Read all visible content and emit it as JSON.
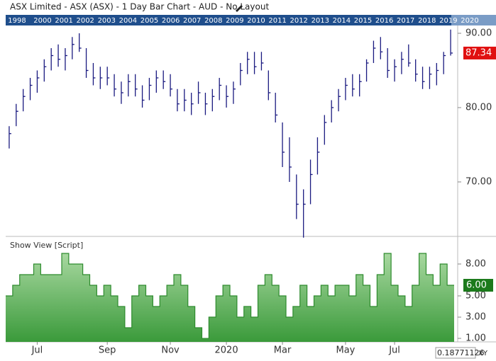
{
  "window": {
    "title": "ASX Limited - ASX (ASX) - 1 Day Bar Chart - AUD - No Layout",
    "years": [
      "1998",
      "2000",
      "2001",
      "2002",
      "2003",
      "2004",
      "2005",
      "2006",
      "2007",
      "2008",
      "2009",
      "2010",
      "2011",
      "2012",
      "2013",
      "2014",
      "2015",
      "2016",
      "2017",
      "2018",
      "2019",
      "2020"
    ],
    "cursor_value": "0.18771126",
    "xy_button": "XY"
  },
  "chart_data": [
    {
      "type": "ohlc",
      "color": "#1a1a80",
      "high": [
        77.5,
        80.5,
        82.5,
        84,
        85,
        86.5,
        88,
        88.5,
        88,
        89.5,
        90,
        88,
        86,
        85.5,
        85.5,
        84.5,
        83.5,
        84.5,
        84.5,
        83,
        84,
        85,
        85,
        84.5,
        82.5,
        82.5,
        82,
        83.5,
        82,
        82.5,
        84,
        83,
        83.5,
        86,
        87.5,
        87.5,
        87.5,
        85,
        82,
        78,
        76,
        71,
        69,
        73,
        76,
        79,
        81,
        82.5,
        84,
        84.5,
        84.5,
        86.5,
        89,
        89.5,
        88,
        86.5,
        87.5,
        88.5,
        86.5,
        85.5,
        85.5,
        86,
        87.5,
        90.5
      ],
      "low": [
        74.5,
        77.5,
        79.5,
        81,
        82,
        83.5,
        85,
        85.5,
        85,
        86.5,
        87.5,
        84,
        83,
        82.5,
        83,
        81.5,
        80.5,
        81.5,
        81.5,
        80,
        81,
        82,
        82.5,
        81.5,
        79.5,
        79.5,
        79,
        80.5,
        79,
        79.5,
        81,
        80,
        80.5,
        83,
        84.5,
        84.5,
        85,
        81,
        78,
        72,
        70,
        65,
        62.5,
        67,
        71,
        75,
        78,
        79.5,
        81,
        81.5,
        81.5,
        83.5,
        86,
        86.5,
        84,
        83.5,
        84.5,
        85.5,
        83.5,
        82.5,
        82.5,
        83,
        84.5,
        87
      ],
      "close": [
        76.5,
        79.5,
        81.5,
        83,
        84,
        85.5,
        87,
        86.5,
        87,
        88.5,
        88,
        85,
        84,
        84,
        84,
        82.5,
        82,
        83.5,
        82.5,
        81,
        83,
        84,
        83.5,
        82.5,
        80.5,
        81,
        80.5,
        82,
        80.5,
        81.5,
        83,
        81.5,
        82.5,
        85,
        86.5,
        85.5,
        86,
        82,
        79,
        74,
        72,
        67,
        67,
        71,
        74,
        78,
        80,
        81.5,
        83,
        82.5,
        83.5,
        86,
        88,
        87.5,
        85,
        85.5,
        86.5,
        86,
        84.5,
        83.5,
        84.5,
        85,
        87,
        87.34
      ],
      "last_value": 87.34,
      "last_color": "#e01010",
      "ylim": [
        62.76,
        91.05
      ],
      "yticks": [
        {
          "value": 90,
          "label": "90.00"
        },
        {
          "value": 80,
          "label": "80.00"
        },
        {
          "value": 70,
          "label": "70.00"
        }
      ]
    },
    {
      "type": "step-area",
      "title": "Show View [Script]",
      "color": "#2e8b2e",
      "values": [
        5,
        6,
        7,
        7,
        8,
        7,
        7,
        7,
        9,
        8,
        8,
        7,
        6,
        5,
        6,
        5,
        4,
        2,
        5,
        6,
        5,
        4,
        5,
        6,
        7,
        6,
        4,
        2,
        1,
        3,
        5,
        6,
        5,
        3,
        4,
        3,
        6,
        7,
        6,
        5,
        3,
        4,
        6,
        4,
        5,
        6,
        5,
        6,
        6,
        5,
        7,
        6,
        4,
        7,
        9,
        6,
        5,
        4,
        6,
        9,
        7,
        6,
        8,
        6
      ],
      "last_value": {
        "value": 6,
        "label": "6.00"
      },
      "ylim": [
        0.67,
        10.53
      ],
      "yticks": [
        {
          "value": 8,
          "label": "8.00"
        },
        {
          "value": 5,
          "label": "5.00"
        },
        {
          "value": 3,
          "label": "3.00"
        },
        {
          "value": 1,
          "label": "1.00"
        }
      ],
      "xticks": [
        {
          "value": 4,
          "label": "Jul"
        },
        {
          "value": 14,
          "label": "Sep"
        },
        {
          "value": 23,
          "label": "Nov"
        },
        {
          "value": 31,
          "label": "2020"
        },
        {
          "value": 39,
          "label": "Mar"
        },
        {
          "value": 48,
          "label": "May"
        },
        {
          "value": 55,
          "label": "Jul"
        }
      ]
    }
  ]
}
